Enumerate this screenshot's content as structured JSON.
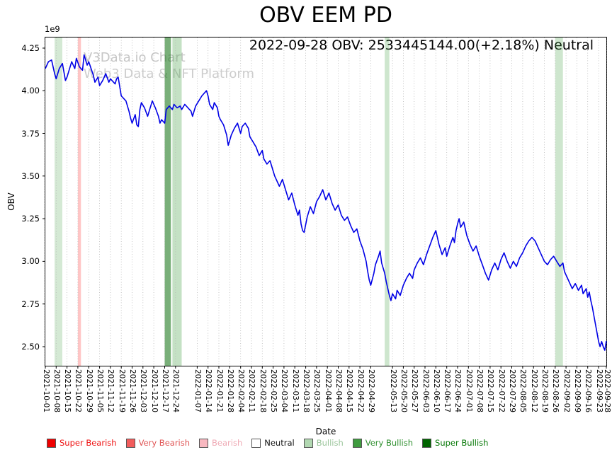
{
  "watermark": {
    "line1": "V3Data.io Chart",
    "line2": "Web3 Data & NFT Platform"
  },
  "chart_data": {
    "type": "line",
    "title": "OBV EEM PD",
    "annotation": "2022-09-28 OBV: 2533445144.00(+2.18%) Neutral",
    "xlabel": "Date",
    "ylabel": "OBV",
    "y_offset_label": "1e9",
    "y_unit": 1000000000,
    "x_start": "2021-10-01",
    "x_end": "2022-09-28",
    "total_days": 362,
    "ylim": [
      2.388,
      4.312
    ],
    "yticks": [
      "2.50",
      "2.75",
      "3.00",
      "3.25",
      "3.50",
      "3.75",
      "4.00",
      "4.25"
    ],
    "xticks": [
      "2021-10-01",
      "2021-10-08",
      "2021-10-15",
      "2021-10-22",
      "2021-10-29",
      "2021-11-05",
      "2021-11-12",
      "2021-11-19",
      "2021-11-26",
      "2021-12-03",
      "2021-12-10",
      "2021-12-17",
      "2021-12-24",
      "2022-01-07",
      "2022-01-14",
      "2022-01-21",
      "2022-01-28",
      "2022-02-04",
      "2022-02-11",
      "2022-02-18",
      "2022-02-25",
      "2022-03-04",
      "2022-03-11",
      "2022-03-18",
      "2022-03-25",
      "2022-04-01",
      "2022-04-08",
      "2022-04-15",
      "2022-04-22",
      "2022-04-29",
      "2022-05-13",
      "2022-05-20",
      "2022-05-27",
      "2022-06-03",
      "2022-06-10",
      "2022-06-17",
      "2022-06-24",
      "2022-07-01",
      "2022-07-08",
      "2022-07-15",
      "2022-07-22",
      "2022-07-29",
      "2022-08-05",
      "2022-08-12",
      "2022-08-19",
      "2022-08-26",
      "2022-09-02",
      "2022-09-09",
      "2022-09-16",
      "2022-09-23",
      "2022-09-28"
    ],
    "grid": "vertical-dotted",
    "line_color": "#0000e6",
    "last_point": {
      "date": "2022-09-28",
      "obv": 2533445144.0,
      "change_pct": "+2.18%",
      "signal": "Neutral"
    },
    "series": [
      {
        "name": "OBV",
        "points_format": "[days_since_2021-10-01, value_in_1e9]",
        "points": [
          [
            0,
            4.13
          ],
          [
            2,
            4.17
          ],
          [
            4,
            4.18
          ],
          [
            6,
            4.1
          ],
          [
            7,
            4.07
          ],
          [
            9,
            4.13
          ],
          [
            11,
            4.16
          ],
          [
            13,
            4.06
          ],
          [
            14,
            4.08
          ],
          [
            17,
            4.17
          ],
          [
            19,
            4.13
          ],
          [
            20,
            4.19
          ],
          [
            22,
            4.14
          ],
          [
            24,
            4.12
          ],
          [
            25,
            4.21
          ],
          [
            27,
            4.15
          ],
          [
            28,
            4.17
          ],
          [
            31,
            4.09
          ],
          [
            32,
            4.05
          ],
          [
            34,
            4.08
          ],
          [
            35,
            4.03
          ],
          [
            37,
            4.06
          ],
          [
            39,
            4.1
          ],
          [
            41,
            4.05
          ],
          [
            42,
            4.07
          ],
          [
            45,
            4.04
          ],
          [
            46,
            4.07
          ],
          [
            47,
            4.08
          ],
          [
            49,
            3.97
          ],
          [
            52,
            3.94
          ],
          [
            54,
            3.88
          ],
          [
            55,
            3.84
          ],
          [
            56,
            3.81
          ],
          [
            58,
            3.86
          ],
          [
            59,
            3.8
          ],
          [
            60,
            3.79
          ],
          [
            61,
            3.89
          ],
          [
            62,
            3.93
          ],
          [
            64,
            3.9
          ],
          [
            66,
            3.85
          ],
          [
            67,
            3.88
          ],
          [
            69,
            3.94
          ],
          [
            71,
            3.9
          ],
          [
            73,
            3.85
          ],
          [
            74,
            3.81
          ],
          [
            75,
            3.83
          ],
          [
            77,
            3.81
          ],
          [
            78,
            3.89
          ],
          [
            80,
            3.91
          ],
          [
            82,
            3.89
          ],
          [
            83,
            3.92
          ],
          [
            85,
            3.9
          ],
          [
            87,
            3.91
          ],
          [
            88,
            3.89
          ],
          [
            90,
            3.92
          ],
          [
            92,
            3.9
          ],
          [
            94,
            3.88
          ],
          [
            95,
            3.85
          ],
          [
            97,
            3.91
          ],
          [
            99,
            3.94
          ],
          [
            101,
            3.97
          ],
          [
            104,
            4.0
          ],
          [
            105,
            3.97
          ],
          [
            106,
            3.92
          ],
          [
            108,
            3.89
          ],
          [
            109,
            3.93
          ],
          [
            111,
            3.9
          ],
          [
            112,
            3.85
          ],
          [
            113,
            3.83
          ],
          [
            115,
            3.8
          ],
          [
            117,
            3.74
          ],
          [
            118,
            3.68
          ],
          [
            119,
            3.71
          ],
          [
            120,
            3.74
          ],
          [
            122,
            3.78
          ],
          [
            124,
            3.81
          ],
          [
            126,
            3.75
          ],
          [
            127,
            3.79
          ],
          [
            129,
            3.81
          ],
          [
            131,
            3.78
          ],
          [
            132,
            3.73
          ],
          [
            134,
            3.7
          ],
          [
            136,
            3.67
          ],
          [
            138,
            3.62
          ],
          [
            140,
            3.65
          ],
          [
            141,
            3.6
          ],
          [
            143,
            3.57
          ],
          [
            145,
            3.59
          ],
          [
            147,
            3.53
          ],
          [
            148,
            3.5
          ],
          [
            150,
            3.46
          ],
          [
            151,
            3.44
          ],
          [
            153,
            3.48
          ],
          [
            155,
            3.42
          ],
          [
            157,
            3.36
          ],
          [
            159,
            3.4
          ],
          [
            161,
            3.33
          ],
          [
            163,
            3.27
          ],
          [
            164,
            3.3
          ],
          [
            165,
            3.22
          ],
          [
            166,
            3.18
          ],
          [
            167,
            3.17
          ],
          [
            169,
            3.26
          ],
          [
            171,
            3.32
          ],
          [
            173,
            3.28
          ],
          [
            175,
            3.35
          ],
          [
            177,
            3.38
          ],
          [
            179,
            3.42
          ],
          [
            181,
            3.36
          ],
          [
            183,
            3.4
          ],
          [
            185,
            3.34
          ],
          [
            187,
            3.3
          ],
          [
            189,
            3.33
          ],
          [
            191,
            3.27
          ],
          [
            193,
            3.24
          ],
          [
            195,
            3.26
          ],
          [
            197,
            3.21
          ],
          [
            199,
            3.17
          ],
          [
            201,
            3.19
          ],
          [
            203,
            3.12
          ],
          [
            205,
            3.07
          ],
          [
            207,
            3.0
          ],
          [
            208,
            2.94
          ],
          [
            209,
            2.89
          ],
          [
            210,
            2.86
          ],
          [
            212,
            2.93
          ],
          [
            213,
            2.98
          ],
          [
            215,
            3.03
          ],
          [
            216,
            3.06
          ],
          [
            217,
            2.99
          ],
          [
            219,
            2.93
          ],
          [
            220,
            2.88
          ],
          [
            221,
            2.84
          ],
          [
            222,
            2.8
          ],
          [
            223,
            2.77
          ],
          [
            224,
            2.81
          ],
          [
            226,
            2.78
          ],
          [
            227,
            2.83
          ],
          [
            229,
            2.8
          ],
          [
            231,
            2.86
          ],
          [
            233,
            2.9
          ],
          [
            235,
            2.93
          ],
          [
            237,
            2.9
          ],
          [
            238,
            2.95
          ],
          [
            240,
            2.99
          ],
          [
            242,
            3.02
          ],
          [
            244,
            2.98
          ],
          [
            246,
            3.04
          ],
          [
            248,
            3.09
          ],
          [
            250,
            3.14
          ],
          [
            252,
            3.18
          ],
          [
            254,
            3.1
          ],
          [
            256,
            3.04
          ],
          [
            258,
            3.08
          ],
          [
            259,
            3.03
          ],
          [
            261,
            3.09
          ],
          [
            263,
            3.14
          ],
          [
            264,
            3.11
          ],
          [
            265,
            3.18
          ],
          [
            266,
            3.22
          ],
          [
            267,
            3.25
          ],
          [
            268,
            3.2
          ],
          [
            270,
            3.23
          ],
          [
            272,
            3.15
          ],
          [
            274,
            3.1
          ],
          [
            276,
            3.06
          ],
          [
            278,
            3.09
          ],
          [
            280,
            3.03
          ],
          [
            282,
            2.98
          ],
          [
            284,
            2.93
          ],
          [
            286,
            2.89
          ],
          [
            288,
            2.95
          ],
          [
            290,
            2.99
          ],
          [
            292,
            2.95
          ],
          [
            294,
            3.01
          ],
          [
            296,
            3.05
          ],
          [
            298,
            3.0
          ],
          [
            300,
            2.96
          ],
          [
            302,
            3.0
          ],
          [
            304,
            2.97
          ],
          [
            306,
            3.02
          ],
          [
            308,
            3.05
          ],
          [
            310,
            3.09
          ],
          [
            312,
            3.12
          ],
          [
            314,
            3.14
          ],
          [
            316,
            3.12
          ],
          [
            318,
            3.08
          ],
          [
            320,
            3.04
          ],
          [
            322,
            3.0
          ],
          [
            324,
            2.98
          ],
          [
            326,
            3.01
          ],
          [
            328,
            3.03
          ],
          [
            330,
            3.0
          ],
          [
            332,
            2.97
          ],
          [
            334,
            2.99
          ],
          [
            335,
            2.94
          ],
          [
            337,
            2.9
          ],
          [
            339,
            2.86
          ],
          [
            340,
            2.84
          ],
          [
            342,
            2.87
          ],
          [
            344,
            2.83
          ],
          [
            346,
            2.86
          ],
          [
            347,
            2.81
          ],
          [
            349,
            2.84
          ],
          [
            350,
            2.79
          ],
          [
            351,
            2.82
          ],
          [
            352,
            2.77
          ],
          [
            353,
            2.73
          ],
          [
            354,
            2.68
          ],
          [
            355,
            2.63
          ],
          [
            356,
            2.58
          ],
          [
            357,
            2.53
          ],
          [
            358,
            2.5
          ],
          [
            359,
            2.53
          ],
          [
            360,
            2.5
          ],
          [
            361,
            2.479
          ],
          [
            362,
            2.533
          ]
        ]
      }
    ],
    "bands": [
      {
        "from": "2021-10-07",
        "to": "2021-10-12",
        "color": "#3c9a3c",
        "opacity": 0.22,
        "signal": "Bullish"
      },
      {
        "from": "2021-10-22",
        "to": "2021-10-24",
        "color": "#ff7f7f",
        "opacity": 0.45,
        "signal": "Bearish"
      },
      {
        "from": "2021-12-17",
        "to": "2021-12-21",
        "color": "#1f7a1f",
        "opacity": 0.6,
        "signal": "Very Bullish"
      },
      {
        "from": "2021-12-22",
        "to": "2021-12-28",
        "color": "#57a957",
        "opacity": 0.35,
        "signal": "Bullish"
      },
      {
        "from": "2022-05-08",
        "to": "2022-05-11",
        "color": "#3c9a3c",
        "opacity": 0.25,
        "signal": "Bullish"
      },
      {
        "from": "2022-08-26",
        "to": "2022-08-31",
        "color": "#3c9a3c",
        "opacity": 0.25,
        "signal": "Bullish"
      }
    ],
    "legend": [
      {
        "label": "Super Bearish",
        "swatch": "#ee0000",
        "text_color": "#ee1111"
      },
      {
        "label": "Very Bearish",
        "swatch": "#f25c5c",
        "text_color": "#e05555"
      },
      {
        "label": "Bearish",
        "swatch": "#f8b8c0",
        "text_color": "#efaab5"
      },
      {
        "label": "Neutral",
        "swatch": "#ffffff",
        "text_color": "#111111"
      },
      {
        "label": "Bullish",
        "swatch": "#b2d8b2",
        "text_color": "#9cc69c"
      },
      {
        "label": "Very Bullish",
        "swatch": "#3f9b3f",
        "text_color": "#2f8f2f"
      },
      {
        "label": "Super Bullish",
        "swatch": "#006400",
        "text_color": "#067806"
      }
    ]
  }
}
